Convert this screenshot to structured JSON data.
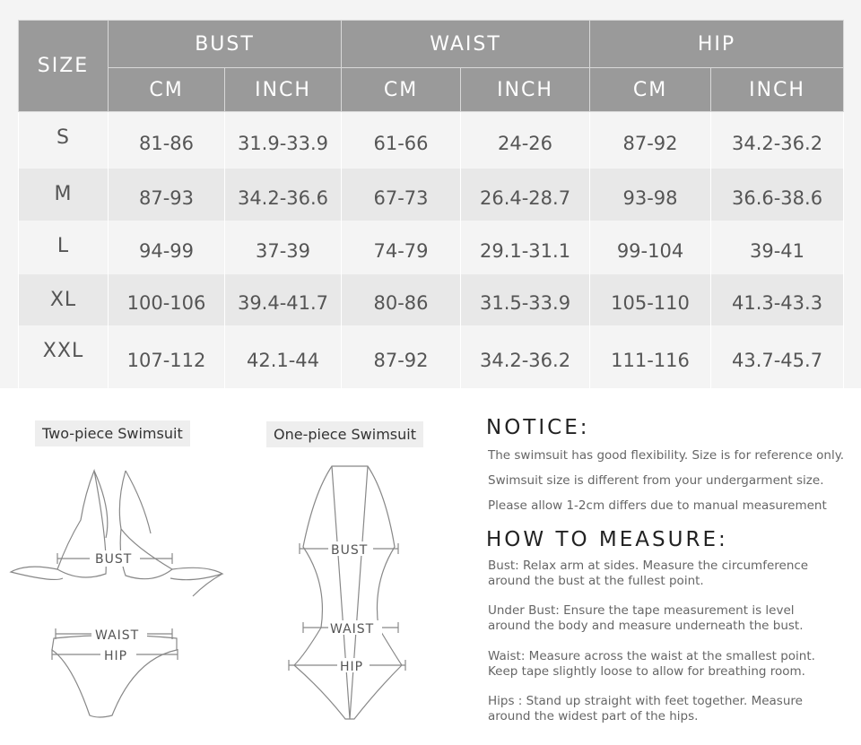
{
  "table": {
    "size_header": "SIZE",
    "groups": [
      "BUST",
      "WAIST",
      "HIP"
    ],
    "units": [
      "CM",
      "INCH",
      "CM",
      "INCH",
      "CM",
      "INCH"
    ],
    "rows": [
      {
        "size": "S",
        "values": [
          "81-86",
          "31.9-33.9",
          "61-66",
          "24-26",
          "87-92",
          "34.2-36.2"
        ]
      },
      {
        "size": "M",
        "values": [
          "87-93",
          "34.2-36.6",
          "67-73",
          "26.4-28.7",
          "93-98",
          "36.6-38.6"
        ]
      },
      {
        "size": "L",
        "values": [
          "94-99",
          "37-39",
          "74-79",
          "29.1-31.1",
          "99-104",
          "39-41"
        ]
      },
      {
        "size": "XL",
        "values": [
          "100-106",
          "39.4-41.7",
          "80-86",
          "31.5-33.9",
          "105-110",
          "41.3-43.3"
        ]
      },
      {
        "size": "XXL",
        "values": [
          "107-112",
          "42.1-44",
          "87-92",
          "34.2-36.2",
          "111-116",
          "43.7-45.7"
        ]
      }
    ]
  },
  "diagrams": {
    "two_piece": {
      "title": "Two-piece Swimsuit",
      "bust": "BUST",
      "waist": "WAIST",
      "hip": "HIP"
    },
    "one_piece": {
      "title": "One-piece Swimsuit",
      "bust": "BUST",
      "waist": "WAIST",
      "hip": "HIP"
    }
  },
  "notice": {
    "title": "NOTICE:",
    "lines": [
      "The swimsuit has good flexibility. Size is for reference only.",
      "Swimsuit size is different from your undergarment size.",
      "Please allow 1-2cm differs due to manual measurement"
    ]
  },
  "measure": {
    "title": "HOW TO MEASURE:",
    "items": [
      "Bust: Relax arm at sides. Measure the circumference around the bust at the fullest point.",
      "Under Bust: Ensure the tape measurement is level around the body and measure underneath the bust.",
      "Waist: Measure across the waist at the smallest point. Keep tape slightly loose to allow for breathing room.",
      "Hips : Stand up straight with feet together. Measure around the widest part of the hips."
    ]
  }
}
